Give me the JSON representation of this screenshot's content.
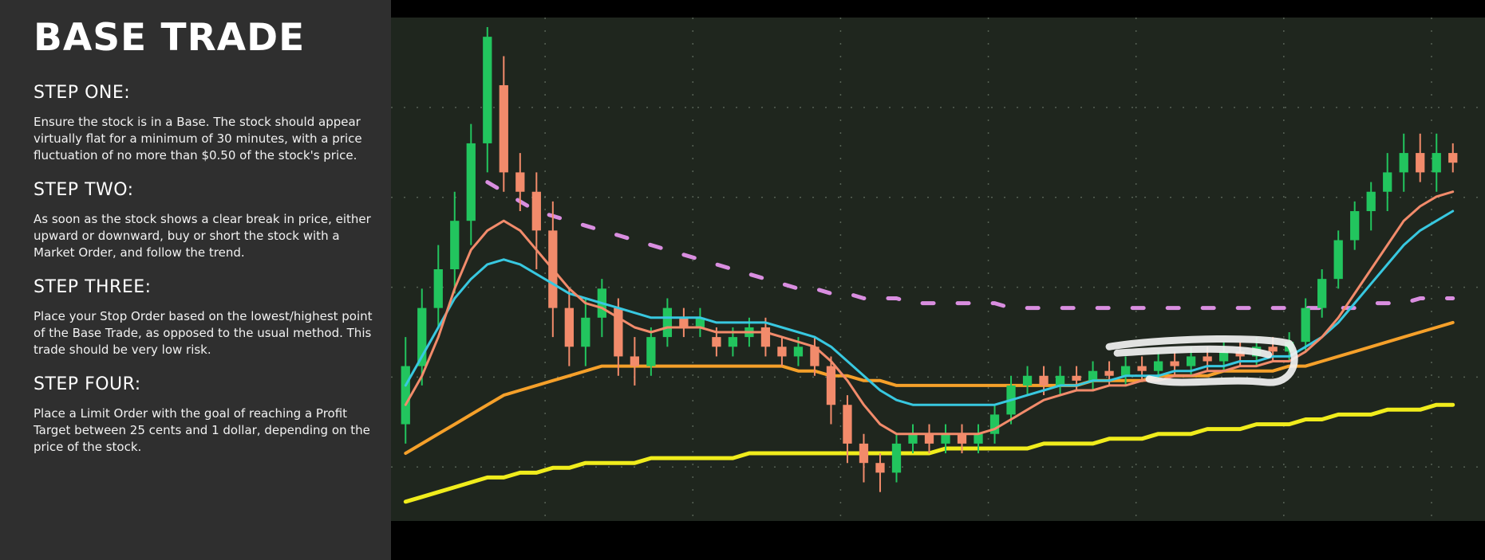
{
  "sidebar": {
    "title": "BASE TRADE",
    "steps": [
      {
        "heading": "STEP ONE:",
        "text": "Ensure the stock is in a Base. The stock should appear virtually flat for a minimum of 30 minutes, with a price fluctuation of no more than $0.50 of the stock's price."
      },
      {
        "heading": "STEP TWO:",
        "text": "As soon as the stock shows a clear break in price, either upward or downward, buy or short the stock with a Market Order, and follow the trend."
      },
      {
        "heading": "STEP THREE:",
        "text": "Place your Stop Order based on the lowest/highest point of the Base Trade, as opposed to the usual method. This trade should be very low risk."
      },
      {
        "heading": "STEP FOUR:",
        "text": "Place a Limit Order with the goal of reaching a Profit Target between 25 cents and 1 dollar, depending on the price of the stock."
      }
    ]
  },
  "chart_data": {
    "type": "candlestick",
    "grid": true,
    "ylim": [
      0,
      100
    ],
    "colors": {
      "up": "#22c55e",
      "down": "#f28b6b",
      "ema_fast": "#f28b6b",
      "ema_slow": "#38c8e0",
      "ma_mid": "#f5a02a",
      "ma_long": "#f0ec1c",
      "vwap": "#d98ee0",
      "annotation": "#f2f2f2"
    },
    "candles": [
      [
        18,
        30,
        14,
        36
      ],
      [
        30,
        42,
        26,
        46
      ],
      [
        42,
        50,
        38,
        55
      ],
      [
        50,
        60,
        45,
        66
      ],
      [
        60,
        76,
        55,
        80
      ],
      [
        76,
        98,
        70,
        100
      ],
      [
        88,
        70,
        66,
        94
      ],
      [
        70,
        66,
        62,
        74
      ],
      [
        66,
        58,
        50,
        70
      ],
      [
        58,
        42,
        36,
        64
      ],
      [
        42,
        34,
        30,
        46
      ],
      [
        34,
        40,
        30,
        44
      ],
      [
        40,
        46,
        36,
        48
      ],
      [
        42,
        32,
        28,
        44
      ],
      [
        32,
        30,
        26,
        36
      ],
      [
        30,
        36,
        28,
        38
      ],
      [
        36,
        42,
        34,
        44
      ],
      [
        40,
        38,
        36,
        42
      ],
      [
        38,
        40,
        36,
        42
      ],
      [
        36,
        34,
        32,
        38
      ],
      [
        34,
        36,
        32,
        38
      ],
      [
        36,
        38,
        34,
        40
      ],
      [
        38,
        34,
        32,
        40
      ],
      [
        34,
        32,
        30,
        36
      ],
      [
        32,
        34,
        30,
        36
      ],
      [
        34,
        30,
        28,
        36
      ],
      [
        30,
        22,
        18,
        32
      ],
      [
        22,
        14,
        10,
        24
      ],
      [
        14,
        10,
        6,
        16
      ],
      [
        10,
        8,
        4,
        12
      ],
      [
        8,
        14,
        6,
        16
      ],
      [
        14,
        16,
        12,
        18
      ],
      [
        16,
        14,
        12,
        18
      ],
      [
        14,
        16,
        12,
        18
      ],
      [
        16,
        14,
        12,
        18
      ],
      [
        14,
        16,
        12,
        18
      ],
      [
        16,
        20,
        14,
        22
      ],
      [
        20,
        26,
        18,
        28
      ],
      [
        26,
        28,
        24,
        30
      ],
      [
        28,
        26,
        24,
        30
      ],
      [
        26,
        28,
        24,
        30
      ],
      [
        28,
        27,
        25,
        30
      ],
      [
        27,
        29,
        25,
        31
      ],
      [
        29,
        28,
        26,
        31
      ],
      [
        28,
        30,
        26,
        32
      ],
      [
        30,
        29,
        27,
        32
      ],
      [
        29,
        31,
        27,
        33
      ],
      [
        31,
        30,
        28,
        33
      ],
      [
        30,
        32,
        28,
        34
      ],
      [
        32,
        31,
        29,
        34
      ],
      [
        31,
        33,
        29,
        35
      ],
      [
        33,
        32,
        30,
        35
      ],
      [
        32,
        34,
        30,
        36
      ],
      [
        34,
        33,
        31,
        36
      ],
      [
        33,
        35,
        31,
        37
      ],
      [
        35,
        42,
        33,
        44
      ],
      [
        42,
        48,
        40,
        50
      ],
      [
        48,
        56,
        46,
        58
      ],
      [
        56,
        62,
        54,
        64
      ],
      [
        62,
        66,
        58,
        68
      ],
      [
        66,
        70,
        62,
        74
      ],
      [
        70,
        74,
        66,
        78
      ],
      [
        74,
        70,
        68,
        78
      ],
      [
        70,
        74,
        66,
        78
      ],
      [
        74,
        72,
        70,
        76
      ]
    ],
    "ema_fast": [
      22,
      28,
      36,
      46,
      54,
      58,
      60,
      58,
      54,
      50,
      46,
      43,
      42,
      40,
      38,
      37,
      38,
      38,
      38,
      37,
      37,
      37,
      37,
      36,
      35,
      34,
      31,
      27,
      22,
      18,
      16,
      16,
      16,
      16,
      16,
      16,
      17,
      19,
      21,
      23,
      24,
      25,
      25,
      26,
      26,
      27,
      27,
      28,
      28,
      29,
      29,
      30,
      30,
      31,
      31,
      33,
      36,
      40,
      45,
      50,
      55,
      60,
      63,
      65,
      66
    ],
    "ema_slow": [
      26,
      32,
      38,
      44,
      48,
      51,
      52,
      51,
      49,
      47,
      45,
      44,
      43,
      42,
      41,
      40,
      40,
      40,
      40,
      39,
      39,
      39,
      39,
      38,
      37,
      36,
      34,
      31,
      28,
      25,
      23,
      22,
      22,
      22,
      22,
      22,
      22,
      23,
      24,
      25,
      26,
      26,
      27,
      27,
      28,
      28,
      28,
      29,
      29,
      30,
      30,
      31,
      31,
      32,
      32,
      34,
      36,
      39,
      43,
      47,
      51,
      55,
      58,
      60,
      62
    ],
    "ma_mid": [
      12,
      14,
      16,
      18,
      20,
      22,
      24,
      25,
      26,
      27,
      28,
      29,
      30,
      30,
      30,
      30,
      30,
      30,
      30,
      30,
      30,
      30,
      30,
      30,
      29,
      29,
      28,
      28,
      27,
      27,
      26,
      26,
      26,
      26,
      26,
      26,
      26,
      26,
      26,
      26,
      26,
      26,
      27,
      27,
      27,
      27,
      28,
      28,
      28,
      28,
      29,
      29,
      29,
      29,
      30,
      30,
      31,
      32,
      33,
      34,
      35,
      36,
      37,
      38,
      39
    ],
    "ma_long": [
      2,
      3,
      4,
      5,
      6,
      7,
      7,
      8,
      8,
      9,
      9,
      10,
      10,
      10,
      10,
      11,
      11,
      11,
      11,
      11,
      11,
      12,
      12,
      12,
      12,
      12,
      12,
      12,
      12,
      12,
      12,
      12,
      12,
      13,
      13,
      13,
      13,
      13,
      13,
      14,
      14,
      14,
      14,
      15,
      15,
      15,
      16,
      16,
      16,
      17,
      17,
      17,
      18,
      18,
      18,
      19,
      19,
      20,
      20,
      20,
      21,
      21,
      21,
      22,
      22
    ],
    "vwap": [
      null,
      null,
      null,
      null,
      null,
      68,
      66,
      64,
      62,
      61,
      60,
      59,
      58,
      57,
      56,
      55,
      54,
      53,
      52,
      51,
      50,
      49,
      48,
      47,
      46,
      46,
      45,
      45,
      44,
      44,
      44,
      43,
      43,
      43,
      43,
      43,
      43,
      42,
      42,
      42,
      42,
      42,
      42,
      42,
      42,
      42,
      42,
      42,
      42,
      42,
      42,
      42,
      42,
      42,
      42,
      42,
      42,
      42,
      42,
      43,
      43,
      43,
      44,
      44,
      44
    ]
  }
}
